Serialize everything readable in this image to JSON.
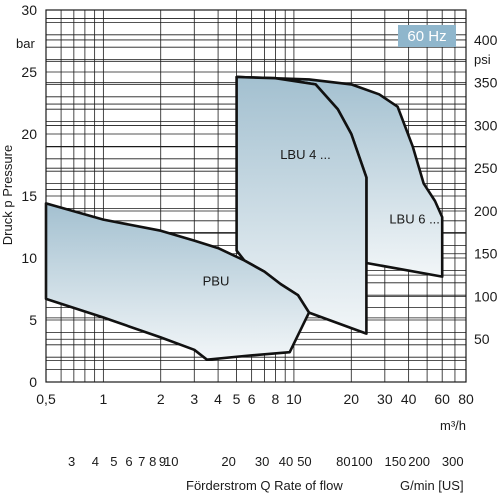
{
  "chart_data": {
    "type": "area",
    "frequency_badge": "60 Hz",
    "ylabel_left": "Druck   p   Pressure",
    "y_unit_left": "bar",
    "y_unit_right": "psi",
    "x_unit_top": "m³/h",
    "xlabel_bottom": "Förderstrom   Q   Rate of flow",
    "x_unit_bottom": "G/min [US]",
    "x_scale": "log",
    "xlim_m3h": [
      0.5,
      80
    ],
    "ylim_bar": [
      0,
      30
    ],
    "ylim_psi": [
      0,
      435
    ],
    "x_ticks_m3h": [
      {
        "v": 0.5,
        "label": "0,5"
      },
      {
        "v": 1,
        "label": "1"
      },
      {
        "v": 2,
        "label": "2"
      },
      {
        "v": 3,
        "label": "3"
      },
      {
        "v": 4,
        "label": "4"
      },
      {
        "v": 5,
        "label": "5"
      },
      {
        "v": 6,
        "label": "6"
      },
      {
        "v": 8,
        "label": "8"
      },
      {
        "v": 10,
        "label": "10"
      },
      {
        "v": 20,
        "label": "20"
      },
      {
        "v": 30,
        "label": "30"
      },
      {
        "v": 40,
        "label": "40"
      },
      {
        "v": 60,
        "label": "60"
      },
      {
        "v": 80,
        "label": "80"
      }
    ],
    "x_ticks_usgpm": [
      {
        "v": 3,
        "label": "3"
      },
      {
        "v": 4,
        "label": "4"
      },
      {
        "v": 5,
        "label": "5"
      },
      {
        "v": 6,
        "label": "6"
      },
      {
        "v": 7,
        "label": "7"
      },
      {
        "v": 8,
        "label": "8"
      },
      {
        "v": 9,
        "label": "9"
      },
      {
        "v": 10,
        "label": "10"
      },
      {
        "v": 20,
        "label": "20"
      },
      {
        "v": 30,
        "label": "30"
      },
      {
        "v": 40,
        "label": "40"
      },
      {
        "v": 50,
        "label": "50"
      },
      {
        "v": 80,
        "label": "80"
      },
      {
        "v": 100,
        "label": "100"
      },
      {
        "v": 150,
        "label": "150"
      },
      {
        "v": 200,
        "label": "200"
      },
      {
        "v": 300,
        "label": "300"
      }
    ],
    "x_ticks_usgpm_text": [
      "3",
      "4",
      "5",
      "6",
      "7",
      "8",
      "9",
      "10",
      "20",
      "30",
      "40",
      "50",
      "80",
      "100",
      "150",
      "200",
      "300"
    ],
    "y_ticks_bar": [
      0,
      5,
      10,
      15,
      20,
      25,
      30
    ],
    "y_ticks_psi": [
      50,
      100,
      150,
      200,
      250,
      300,
      350,
      400
    ],
    "grid": true,
    "regions": [
      {
        "name": "PBU",
        "points": [
          [
            0.5,
            14.4
          ],
          [
            1.0,
            13.1
          ],
          [
            2.0,
            12.2
          ],
          [
            3.0,
            11.4
          ],
          [
            4.0,
            10.8
          ],
          [
            5.5,
            9.8
          ],
          [
            7.0,
            8.9
          ],
          [
            8.5,
            7.9
          ],
          [
            10.5,
            7.0
          ],
          [
            12.0,
            5.6
          ],
          [
            9.5,
            2.4
          ],
          [
            5.5,
            2.1
          ],
          [
            3.5,
            1.8
          ],
          [
            3.0,
            2.6
          ],
          [
            2.0,
            3.6
          ],
          [
            1.0,
            5.2
          ],
          [
            0.5,
            6.7
          ]
        ]
      },
      {
        "name": "LBU 4 ...",
        "points": [
          [
            5.0,
            24.6
          ],
          [
            8.0,
            24.5
          ],
          [
            13.0,
            24.0
          ],
          [
            17.0,
            22.0
          ],
          [
            20.0,
            20.0
          ],
          [
            24.0,
            16.5
          ],
          [
            24.0,
            3.9
          ],
          [
            12.0,
            5.6
          ],
          [
            10.5,
            7.0
          ],
          [
            8.5,
            7.9
          ],
          [
            7.0,
            8.9
          ],
          [
            5.5,
            9.8
          ],
          [
            5.0,
            10.6
          ]
        ]
      },
      {
        "name": "LBU 6 ...",
        "points": [
          [
            5.0,
            24.6
          ],
          [
            12.0,
            24.4
          ],
          [
            20.0,
            24.0
          ],
          [
            28.0,
            23.2
          ],
          [
            35.0,
            22.2
          ],
          [
            42.0,
            19.0
          ],
          [
            48.0,
            16.0
          ],
          [
            55.0,
            14.6
          ],
          [
            60.0,
            13.3
          ],
          [
            60.0,
            8.5
          ],
          [
            24.0,
            9.6
          ],
          [
            24.0,
            16.5
          ],
          [
            20.0,
            20.0
          ],
          [
            17.0,
            22.0
          ],
          [
            13.0,
            24.0
          ],
          [
            8.0,
            24.5
          ]
        ]
      }
    ],
    "region_labels": [
      {
        "name": "PBU",
        "text": "PBU",
        "x": 3.9,
        "y": 7.8
      },
      {
        "name": "LBU 4 ...",
        "text": "LBU 4 ...",
        "x": 11.5,
        "y": 18.0
      },
      {
        "name": "LBU 6 ...",
        "text": "LBU 6 ...",
        "x": 43.0,
        "y": 12.8
      }
    ]
  },
  "colors": {
    "badge_bg": "#8fb6cc",
    "region_top": "#a3c0d0",
    "region_bottom": "#f2f6f8",
    "grid": "#1a1a1a"
  }
}
